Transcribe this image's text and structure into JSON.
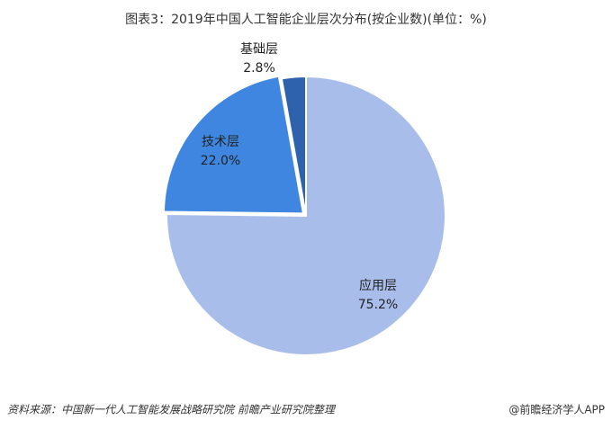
{
  "chart_data": {
    "type": "pie",
    "title": "图表3：2019年中国人工智能企业层次分布(按企业数)(单位：%)",
    "categories": [
      "应用层",
      "技术层",
      "基础层"
    ],
    "values": [
      75.2,
      22.0,
      2.8
    ],
    "value_labels": [
      "75.2%",
      "22.0%",
      "2.8%"
    ],
    "colors": [
      "#a9bdeb",
      "#3f86e0",
      "#2f62ad"
    ],
    "source": "资料来源：中国新一代人工智能发展战略研究院 前瞻产业研究院整理",
    "brand": "@前瞻经济学人APP"
  }
}
